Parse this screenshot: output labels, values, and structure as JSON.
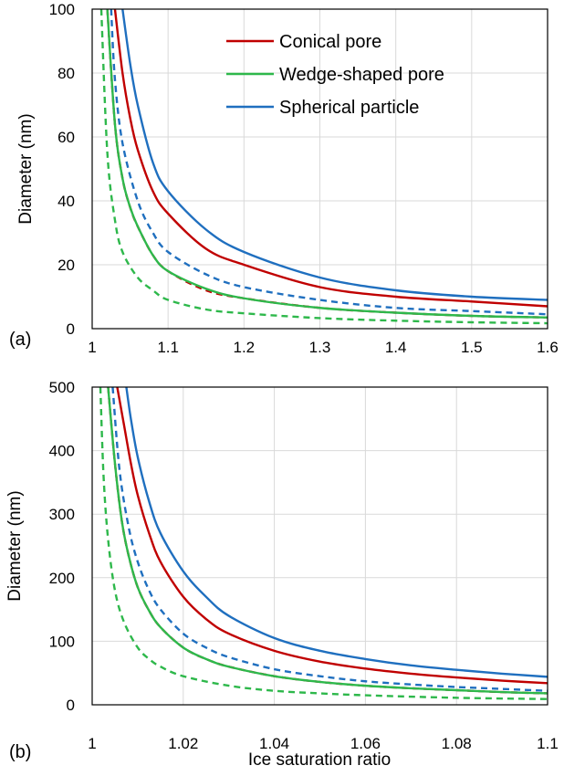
{
  "colors": {
    "conical": "#c00000",
    "wedge": "#2eb84b",
    "spherical": "#1f6fbf"
  },
  "legend": {
    "entries": [
      "Conical pore",
      "Wedge-shaped pore",
      "Spherical particle"
    ]
  },
  "chart_data": [
    {
      "type": "line",
      "panel_label": "(a)",
      "ylabel": "Diameter (nm)",
      "xlabel": "",
      "xlim": [
        1.0,
        1.6
      ],
      "ylim": [
        0,
        100
      ],
      "xticks": [
        "1",
        "1.1",
        "1.2",
        "1.3",
        "1.4",
        "1.5",
        "1.6"
      ],
      "yticks": [
        "0",
        "20",
        "40",
        "60",
        "80",
        "100"
      ],
      "grid": true,
      "legend_position": "top-right",
      "series": [
        {
          "name": "Spherical particle",
          "style": "solid",
          "color": "spherical",
          "x": [
            1.04,
            1.05,
            1.06,
            1.08,
            1.1,
            1.15,
            1.2,
            1.3,
            1.4,
            1.5,
            1.6
          ],
          "y": [
            100,
            83,
            70,
            52,
            43,
            31,
            24,
            16,
            12,
            10,
            9
          ]
        },
        {
          "name": "Conical pore",
          "style": "solid",
          "color": "conical",
          "x": [
            1.03,
            1.04,
            1.05,
            1.06,
            1.08,
            1.1,
            1.15,
            1.2,
            1.3,
            1.4,
            1.5,
            1.6
          ],
          "y": [
            100,
            80,
            66,
            56,
            43,
            36,
            25,
            20,
            13,
            10,
            8.5,
            7
          ]
        },
        {
          "name": "",
          "style": "dashed",
          "color": "spherical",
          "x": [
            1.025,
            1.03,
            1.04,
            1.06,
            1.08,
            1.1,
            1.15,
            1.2,
            1.3,
            1.4,
            1.5,
            1.6
          ],
          "y": [
            100,
            78,
            58,
            40,
            30,
            24,
            17,
            13,
            9,
            6.5,
            5.5,
            4.5
          ]
        },
        {
          "name": "",
          "style": "dashed",
          "color": "conical",
          "x": [
            1.02,
            1.03,
            1.04,
            1.05,
            1.06,
            1.08,
            1.1,
            1.15,
            1.2,
            1.3,
            1.4,
            1.5,
            1.6
          ],
          "y": [
            100,
            64,
            47,
            38,
            32,
            23,
            18,
            12,
            9.5,
            6.5,
            5,
            4,
            3.5
          ]
        },
        {
          "name": "Wedge-shaped pore",
          "style": "solid",
          "color": "wedge",
          "x": [
            1.02,
            1.03,
            1.04,
            1.05,
            1.06,
            1.08,
            1.1,
            1.15,
            1.2,
            1.3,
            1.4,
            1.5,
            1.6
          ],
          "y": [
            100,
            64,
            47,
            38,
            32,
            23,
            18,
            12.5,
            9.5,
            6.5,
            5,
            4,
            3.5
          ]
        },
        {
          "name": "",
          "style": "dashed",
          "color": "wedge",
          "x": [
            1.012,
            1.02,
            1.03,
            1.04,
            1.06,
            1.08,
            1.1,
            1.15,
            1.2,
            1.3,
            1.4,
            1.5,
            1.6
          ],
          "y": [
            100,
            55,
            34,
            24,
            16,
            12,
            9,
            6,
            4.8,
            3.3,
            2.5,
            2,
            1.7
          ]
        }
      ]
    },
    {
      "type": "line",
      "panel_label": "(b)",
      "ylabel": "Diameter (nm)",
      "xlabel": "Ice saturation ratio",
      "xlim": [
        1.0,
        1.1
      ],
      "ylim": [
        0,
        500
      ],
      "xticks": [
        "1",
        "1.02",
        "1.04",
        "1.06",
        "1.08",
        "1.1"
      ],
      "yticks": [
        "0",
        "100",
        "200",
        "300",
        "400",
        "500"
      ],
      "grid": true,
      "series": [
        {
          "name": "Spherical particle",
          "style": "solid",
          "color": "spherical",
          "x": [
            1.0075,
            1.0085,
            1.01,
            1.0125,
            1.015,
            1.02,
            1.025,
            1.03,
            1.04,
            1.05,
            1.06,
            1.07,
            1.08,
            1.09,
            1.1
          ],
          "y": [
            500,
            450,
            390,
            320,
            270,
            210,
            170,
            140,
            105,
            85,
            72,
            62,
            55,
            49,
            44
          ]
        },
        {
          "name": "Conical pore",
          "style": "solid",
          "color": "conical",
          "x": [
            1.0055,
            1.007,
            1.0085,
            1.01,
            1.0125,
            1.015,
            1.02,
            1.025,
            1.03,
            1.04,
            1.05,
            1.06,
            1.07,
            1.08,
            1.09,
            1.1
          ],
          "y": [
            500,
            440,
            380,
            330,
            270,
            225,
            170,
            135,
            112,
            85,
            68,
            57,
            49,
            43,
            38,
            34
          ]
        },
        {
          "name": "",
          "style": "dashed",
          "color": "spherical",
          "x": [
            1.0045,
            1.006,
            1.008,
            1.01,
            1.0125,
            1.015,
            1.02,
            1.025,
            1.03,
            1.04,
            1.05,
            1.06,
            1.07,
            1.08,
            1.09,
            1.1
          ],
          "y": [
            500,
            370,
            280,
            225,
            180,
            150,
            112,
            90,
            75,
            56,
            45,
            37,
            32,
            28,
            25,
            22
          ]
        },
        {
          "name": "",
          "style": "dashed",
          "color": "conical",
          "x": [
            1.0035,
            1.005,
            1.0065,
            1.008,
            1.01,
            1.0125,
            1.015,
            1.02,
            1.025,
            1.03,
            1.04,
            1.05,
            1.06,
            1.07,
            1.08,
            1.09,
            1.1
          ],
          "y": [
            500,
            380,
            290,
            235,
            185,
            148,
            122,
            90,
            72,
            60,
            45,
            36,
            30,
            26,
            23,
            20,
            18
          ]
        },
        {
          "name": "Wedge-shaped pore",
          "style": "solid",
          "color": "wedge",
          "x": [
            1.0035,
            1.005,
            1.0065,
            1.008,
            1.01,
            1.0125,
            1.015,
            1.02,
            1.025,
            1.03,
            1.04,
            1.05,
            1.06,
            1.07,
            1.08,
            1.09,
            1.1
          ],
          "y": [
            500,
            380,
            290,
            235,
            185,
            148,
            122,
            90,
            72,
            60,
            45,
            36,
            30,
            26,
            23,
            20,
            18
          ]
        },
        {
          "name": "",
          "style": "dashed",
          "color": "wedge",
          "x": [
            1.0018,
            1.0025,
            1.0035,
            1.005,
            1.007,
            1.01,
            1.0125,
            1.015,
            1.02,
            1.03,
            1.04,
            1.05,
            1.06,
            1.08,
            1.1
          ],
          "y": [
            500,
            360,
            260,
            180,
            130,
            90,
            72,
            60,
            45,
            30,
            22,
            18,
            15,
            11,
            9
          ]
        }
      ]
    }
  ]
}
